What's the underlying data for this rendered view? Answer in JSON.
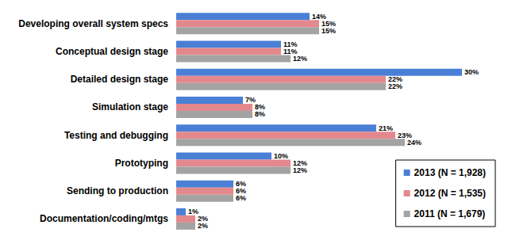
{
  "chart_data": {
    "type": "bar",
    "orientation": "horizontal",
    "categories": [
      "Developing overall system specs",
      "Conceptual design stage",
      "Detailed design stage",
      "Simulation stage",
      "Testing and debugging",
      "Prototyping",
      "Sending to production",
      "Documentation/coding/mtgs"
    ],
    "series": [
      {
        "name": "2013 (N = 1,928)",
        "color": "#4a7fd6",
        "values": [
          14,
          11,
          30,
          7,
          21,
          10,
          6,
          1
        ],
        "value_labels": [
          "14%",
          "11%",
          "30%",
          "7%",
          "21%",
          "10%",
          "6%",
          "1%"
        ]
      },
      {
        "name": "2012 (N = 1,535)",
        "color": "#e3898e",
        "values": [
          15,
          11,
          22,
          8,
          23,
          12,
          6,
          2
        ],
        "value_labels": [
          "15%",
          "11%",
          "22%",
          "8%",
          "23%",
          "12%",
          "6%",
          "2%"
        ]
      },
      {
        "name": "2011 (N = 1,679)",
        "color": "#a3a3a3",
        "values": [
          15,
          12,
          22,
          8,
          24,
          12,
          6,
          2
        ],
        "value_labels": [
          "15%",
          "12%",
          "22%",
          "8%",
          "24%",
          "12%",
          "6%",
          "2%"
        ]
      }
    ],
    "xlim": [
      0,
      34
    ],
    "grid": false,
    "data_labels": true,
    "legend": "lower right",
    "tick_labels": "y"
  }
}
